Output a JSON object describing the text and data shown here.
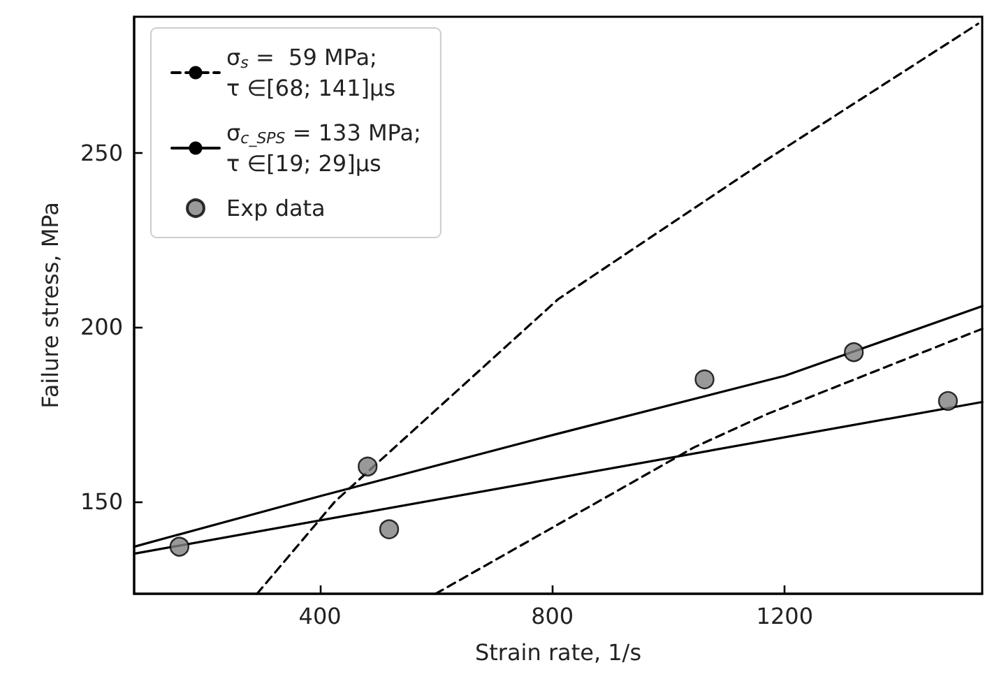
{
  "chart_data": {
    "type": "line",
    "xlabel": "Strain rate, 1/s",
    "ylabel": "Failure stress, MPa",
    "xlim": [
      80,
      1540
    ],
    "ylim": [
      123.5,
      289
    ],
    "xticks": [
      400,
      800,
      1200
    ],
    "yticks": [
      150,
      200,
      250
    ],
    "grid": false,
    "legend": "top left",
    "series": [
      {
        "name": "σ$_{s}$ =  59 MPa;\nτ ∈[68; 141]μs",
        "color": "#000000",
        "line_style": "dashed",
        "marker": "none",
        "x": [
          291.6,
          426,
          810,
          1169,
          1533
        ],
        "values": [
          123.5,
          150,
          208,
          248,
          287
        ]
      },
      {
        "color": "#000000",
        "line_style": "dashed",
        "marker": "none",
        "x": [
          599,
          1044,
          1169,
          1540
        ],
        "values": [
          123.5,
          165.5,
          175,
          199.5
        ]
      },
      {
        "name": "σ$_{c_SPS}$ = 133 MPa;\nτ ∈[19; 29]μs",
        "color": "#000000",
        "line_style": "solid",
        "marker": "none",
        "x": [
          80,
          400,
          800,
          1200,
          1540
        ],
        "values": [
          137,
          151.5,
          169,
          186,
          206
        ]
      },
      {
        "color": "#000000",
        "line_style": "solid",
        "marker": "none",
        "x": [
          80,
          1540
        ],
        "values": [
          135,
          178.5
        ]
      },
      {
        "name": "Exp data",
        "type": "scatter",
        "color": "#808080",
        "marker": "circle",
        "x": [
          158,
          482,
          519,
          1062,
          1319,
          1481
        ],
        "values": [
          137,
          160,
          142,
          185,
          192.8,
          178.8
        ]
      }
    ]
  }
}
